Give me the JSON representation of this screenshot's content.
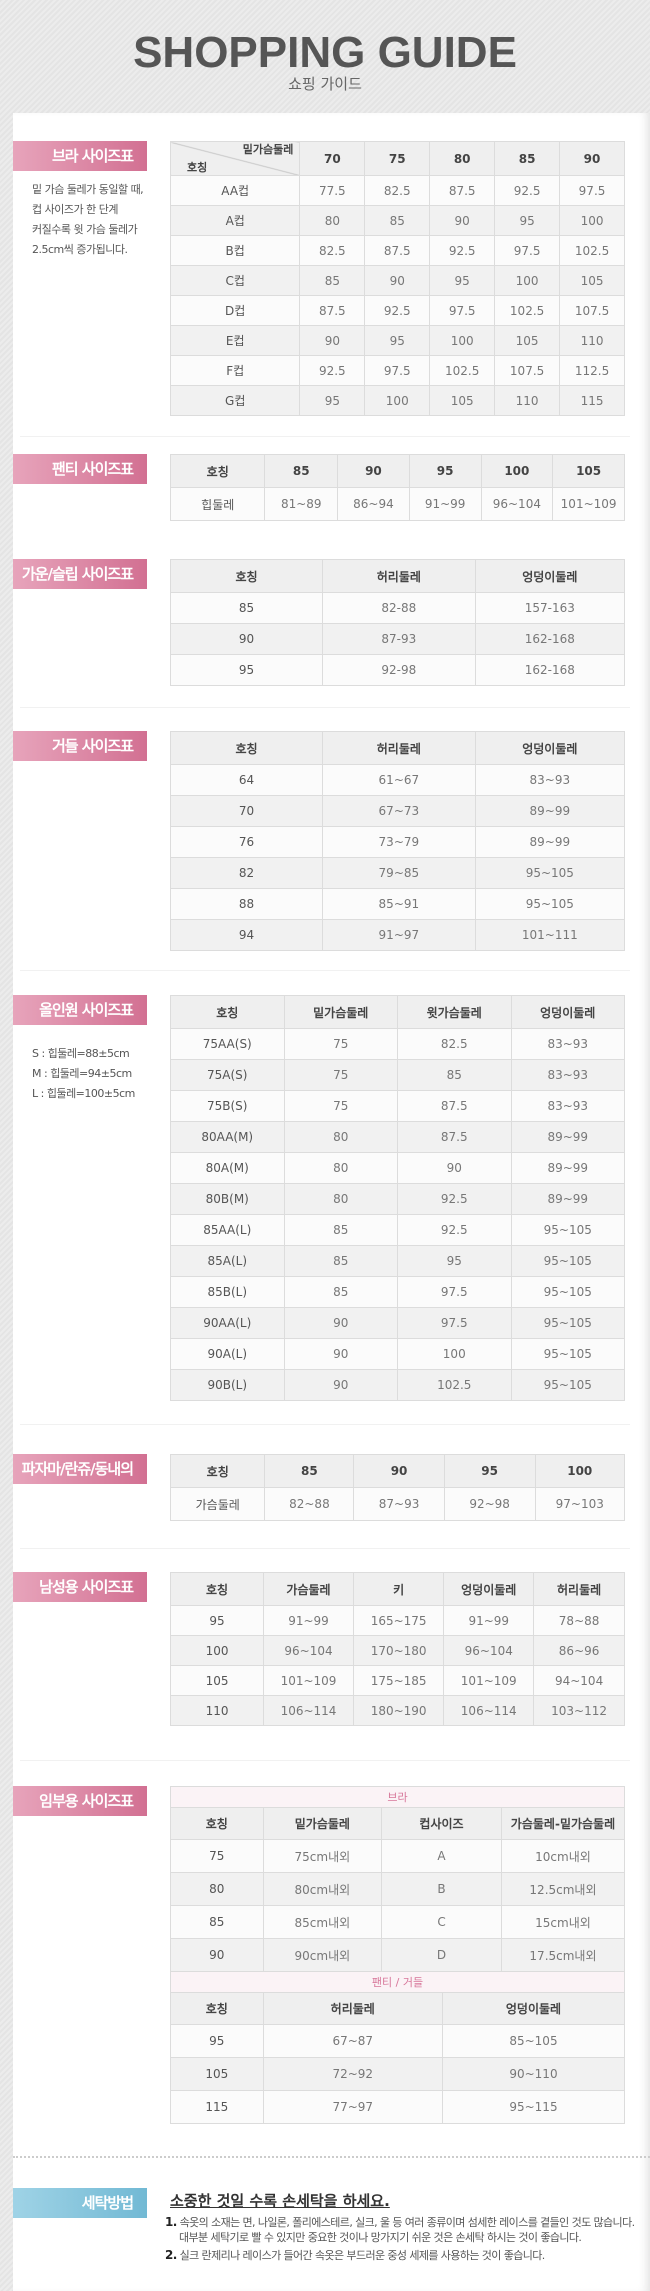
{
  "header": {
    "title": "SHOPPING GUIDE",
    "subtitle": "쇼핑 가이드"
  },
  "colors": {
    "badge_pink": "#d27092",
    "badge_blue": "#72b9d4",
    "text": "#555555"
  },
  "bra": {
    "label": "브라 사이즈표",
    "note": [
      "밑 가슴 둘레가 동일할 때,",
      "컵 사이즈가 한 단계",
      "커질수록 윗 가슴 둘레가",
      "2.5cm씩 증가됩니다."
    ],
    "corner_top": "밑가슴둘레",
    "corner_bottom": "호칭",
    "columns": [
      "70",
      "75",
      "80",
      "85",
      "90"
    ],
    "rows": [
      [
        "AA컵",
        "77.5",
        "82.5",
        "87.5",
        "92.5",
        "97.5"
      ],
      [
        "A컵",
        "80",
        "85",
        "90",
        "95",
        "100"
      ],
      [
        "B컵",
        "82.5",
        "87.5",
        "92.5",
        "97.5",
        "102.5"
      ],
      [
        "C컵",
        "85",
        "90",
        "95",
        "100",
        "105"
      ],
      [
        "D컵",
        "87.5",
        "92.5",
        "97.5",
        "102.5",
        "107.5"
      ],
      [
        "E컵",
        "90",
        "95",
        "100",
        "105",
        "110"
      ],
      [
        "F컵",
        "92.5",
        "97.5",
        "102.5",
        "107.5",
        "112.5"
      ],
      [
        "G컵",
        "95",
        "100",
        "105",
        "110",
        "115"
      ]
    ]
  },
  "panty": {
    "label": "팬티 사이즈표",
    "columns": [
      "호칭",
      "85",
      "90",
      "95",
      "100",
      "105"
    ],
    "rows": [
      [
        "힙둘레",
        "81~89",
        "86~94",
        "91~99",
        "96~104",
        "101~109"
      ]
    ]
  },
  "gown": {
    "label": "가운/슬립 사이즈표",
    "columns": [
      "호칭",
      "허리둘레",
      "엉덩이둘레"
    ],
    "rows": [
      [
        "85",
        "82-88",
        "157-163"
      ],
      [
        "90",
        "87-93",
        "162-168"
      ],
      [
        "95",
        "92-98",
        "162-168"
      ]
    ]
  },
  "girdle": {
    "label": "거들 사이즈표",
    "columns": [
      "호칭",
      "허리둘레",
      "엉덩이둘레"
    ],
    "rows": [
      [
        "64",
        "61~67",
        "83~93"
      ],
      [
        "70",
        "67~73",
        "89~99"
      ],
      [
        "76",
        "73~79",
        "89~99"
      ],
      [
        "82",
        "79~85",
        "95~105"
      ],
      [
        "88",
        "85~91",
        "95~105"
      ],
      [
        "94",
        "91~97",
        "101~111"
      ]
    ]
  },
  "allinone": {
    "label": "올인원 사이즈표",
    "note": [
      "S : 힙둘레=88±5cm",
      "M : 힙둘레=94±5cm",
      "L : 힙둘레=100±5cm"
    ],
    "columns": [
      "호칭",
      "밑가슴둘레",
      "윗가슴둘레",
      "엉덩이둘레"
    ],
    "rows": [
      [
        "75AA(S)",
        "75",
        "82.5",
        "83~93"
      ],
      [
        "75A(S)",
        "75",
        "85",
        "83~93"
      ],
      [
        "75B(S)",
        "75",
        "87.5",
        "83~93"
      ],
      [
        "80AA(M)",
        "80",
        "87.5",
        "89~99"
      ],
      [
        "80A(M)",
        "80",
        "90",
        "89~99"
      ],
      [
        "80B(M)",
        "80",
        "92.5",
        "89~99"
      ],
      [
        "85AA(L)",
        "85",
        "92.5",
        "95~105"
      ],
      [
        "85A(L)",
        "85",
        "95",
        "95~105"
      ],
      [
        "85B(L)",
        "85",
        "97.5",
        "95~105"
      ],
      [
        "90AA(L)",
        "90",
        "97.5",
        "95~105"
      ],
      [
        "90A(L)",
        "90",
        "100",
        "95~105"
      ],
      [
        "90B(L)",
        "90",
        "102.5",
        "95~105"
      ]
    ]
  },
  "pajama": {
    "label": "파자마/란쥬/동내의",
    "columns": [
      "호칭",
      "85",
      "90",
      "95",
      "100"
    ],
    "rows": [
      [
        "가슴둘레",
        "82~88",
        "87~93",
        "92~98",
        "97~103"
      ]
    ]
  },
  "men": {
    "label": "남성용 사이즈표",
    "columns": [
      "호칭",
      "가슴둘레",
      "키",
      "엉덩이둘레",
      "허리둘레"
    ],
    "rows": [
      [
        "95",
        "91~99",
        "165~175",
        "91~99",
        "78~88"
      ],
      [
        "100",
        "96~104",
        "170~180",
        "96~104",
        "86~96"
      ],
      [
        "105",
        "101~109",
        "175~185",
        "101~109",
        "94~104"
      ],
      [
        "110",
        "106~114",
        "180~190",
        "106~114",
        "103~112"
      ]
    ]
  },
  "maternity": {
    "label": "임부용 사이즈표",
    "bra": {
      "caption": "브라",
      "columns": [
        "호칭",
        "밑가슴둘레",
        "컵사이즈",
        "가슴둘레-밑가슴둘레"
      ],
      "rows": [
        [
          "75",
          "75cm내외",
          "A",
          "10cm내외"
        ],
        [
          "80",
          "80cm내외",
          "B",
          "12.5cm내외"
        ],
        [
          "85",
          "85cm내외",
          "C",
          "15cm내외"
        ],
        [
          "90",
          "90cm내외",
          "D",
          "17.5cm내외"
        ]
      ]
    },
    "panty": {
      "caption": "팬티 / 거들",
      "columns": [
        "호칭",
        "허리둘레",
        "엉덩이둘레"
      ],
      "rows": [
        [
          "95",
          "67~87",
          "85~105"
        ],
        [
          "105",
          "72~92",
          "90~110"
        ],
        [
          "115",
          "77~97",
          "95~115"
        ]
      ]
    }
  },
  "washing": {
    "label": "세탁방법",
    "title": "소중한 것일 수록 손세탁을 하세요.",
    "items": [
      {
        "num": "1.",
        "lines": [
          "속옷의 소재는 면, 나일론, 폴리에스테르, 실크, 울 등 여러 종류이며 섬세한 레이스를 곁들인 것도 많습니다.",
          "대부분 세탁기로 빨 수 있지만 중요한 것이나 망가지기 쉬운 것은 손세탁 하시는 것이 좋습니다."
        ]
      },
      {
        "num": "2.",
        "lines": [
          "실크 란제리나 레이스가 들어간 속옷은 부드러운 중성 세제를 사용하는 것이 좋습니다."
        ]
      }
    ]
  }
}
